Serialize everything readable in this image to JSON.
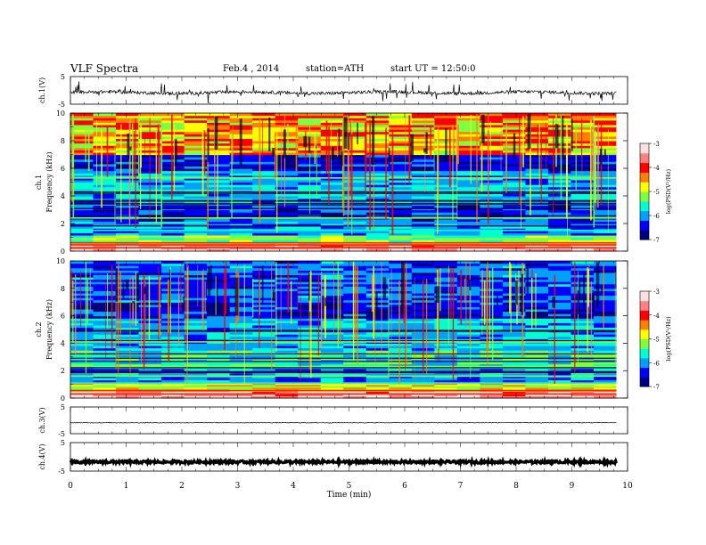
{
  "header": {
    "title": "VLF Spectra",
    "date": "Feb.4 , 2014",
    "station": "station=ATH",
    "start": "start UT = 12:50:0"
  },
  "chart_data": {
    "type": "heatmap",
    "xlabel": "Time (min)",
    "xlim": [
      0,
      10
    ],
    "x_ticks": [
      "0",
      "1",
      "2",
      "3",
      "4",
      "5",
      "6",
      "7",
      "8",
      "9",
      "10"
    ],
    "waveforms": [
      {
        "name": "ch.1",
        "ylabel": "ch.1(V)",
        "ylim": [
          -5,
          5
        ],
        "y_ticks": [
          "5",
          "-5"
        ]
      },
      {
        "name": "ch.3",
        "ylabel": "ch.3(V)",
        "ylim": [
          -5,
          5
        ],
        "y_ticks": [
          "5",
          "-5"
        ]
      },
      {
        "name": "ch.4",
        "ylabel": "ch.4(V)",
        "ylim": [
          -5,
          5
        ],
        "y_ticks": [
          "5",
          "-5"
        ]
      }
    ],
    "spectrograms": [
      {
        "channel_label": "ch.1",
        "ylabel": "Frequency (kHz)",
        "ylim": [
          0,
          10
        ],
        "y_ticks": [
          "0",
          "2",
          "4",
          "6",
          "8",
          "10"
        ],
        "data_end_min": 9.8
      },
      {
        "channel_label": "ch.2",
        "ylabel": "Frequency (kHz)",
        "ylim": [
          0,
          10
        ],
        "y_ticks": [
          "0",
          "2",
          "4",
          "6",
          "8",
          "10"
        ],
        "data_end_min": 9.8
      }
    ],
    "colorbar": {
      "label": "log(PSD(V²/Hz)",
      "range": [
        -7,
        -3
      ],
      "ticks": [
        "-3",
        "-4",
        "-5",
        "-6",
        "-7"
      ],
      "colors": [
        "#000080",
        "#0000ff",
        "#00a0ff",
        "#00ffd0",
        "#80ff40",
        "#ffff00",
        "#ff8000",
        "#ff0000",
        "#ff8080",
        "#ffe0e0"
      ]
    }
  }
}
